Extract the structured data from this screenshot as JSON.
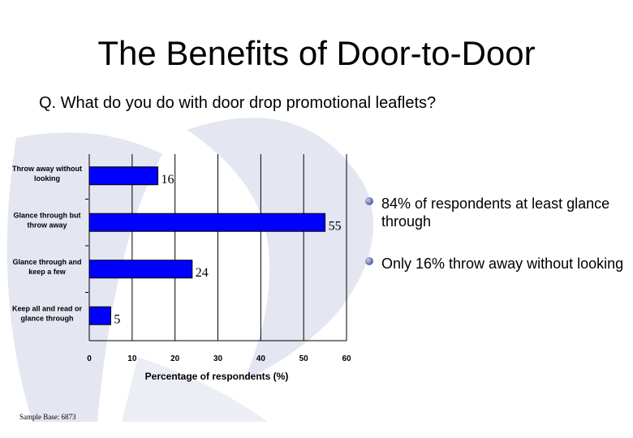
{
  "slide": {
    "title": "The Benefits of Door-to-Door",
    "question": "Q. What do you do with door drop promotional leaflets?",
    "sample_note": "Sample Base: 6873"
  },
  "bullets": [
    {
      "text": "84% of respondents at least glance through"
    },
    {
      "text": "Only 16% throw away without looking"
    }
  ],
  "colors": {
    "bar": "#0000ff",
    "watermark": "#d9dceb",
    "bullet": "#5a63b0"
  },
  "chart_data": {
    "type": "bar",
    "orientation": "horizontal",
    "categories": [
      "Throw away without looking",
      "Glance through but throw away",
      "Glance through and keep a few",
      "Keep all and read or glance through"
    ],
    "category_lines": [
      [
        "Throw away without",
        "looking"
      ],
      [
        "Glance through but",
        "throw away"
      ],
      [
        "Glance through and",
        "keep a few"
      ],
      [
        "Keep all and read or",
        "glance through"
      ]
    ],
    "values": [
      16,
      55,
      24,
      5
    ],
    "data_labels": [
      "16",
      "55",
      "24",
      "5"
    ],
    "xlabel": "Percentage of respondents (%)",
    "xlim": [
      0,
      60
    ],
    "xticks": [
      "0",
      "10",
      "20",
      "30",
      "40",
      "50",
      "60"
    ],
    "grid": "vertical"
  }
}
